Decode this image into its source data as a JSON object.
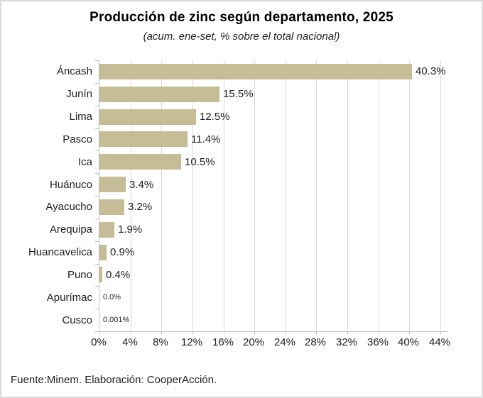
{
  "page": {
    "title": "Producción de zinc según departamento, 2025",
    "subtitle": "(acum. ene-set, % sobre el total nacional)",
    "footer": "Fuente:Minem. Elaboración: CooperAcción."
  },
  "chart_data": {
    "type": "bar",
    "orientation": "horizontal",
    "title": "Producción de zinc según departamento, 2025",
    "subtitle": "(acum. ene-set, % sobre el total nacional)",
    "categories": [
      "Áncash",
      "Junín",
      "Lima",
      "Pasco",
      "Ica",
      "Huánuco",
      "Ayacucho",
      "Arequipa",
      "Huancavelica",
      "Puno",
      "Apurímac",
      "Cusco"
    ],
    "values": [
      40.3,
      15.5,
      12.5,
      11.4,
      10.5,
      3.4,
      3.2,
      1.9,
      0.9,
      0.4,
      0.0,
      0.001
    ],
    "value_labels": [
      "40.3%",
      "15.5%",
      "12.5%",
      "11.4%",
      "10.5%",
      "3.4%",
      "3.2%",
      "1.9%",
      "0.9%",
      "0.4%",
      "0.0%",
      "0.001%"
    ],
    "small_value_label_indices": [
      10,
      11
    ],
    "x_tick_values": [
      0,
      4,
      8,
      12,
      16,
      20,
      24,
      28,
      32,
      36,
      40,
      44
    ],
    "x_tick_labels": [
      "0%",
      "4%",
      "8%",
      "12%",
      "16%",
      "20%",
      "24%",
      "28%",
      "32%",
      "36%",
      "40%",
      "44%"
    ],
    "xlim": [
      0,
      45
    ],
    "grid": true,
    "legend": false,
    "xlabel": "",
    "ylabel": "",
    "source_note": "Fuente:Minem. Elaboración: CooperAcción.",
    "colors": {
      "bar": "#C6BC95",
      "gridline": "#D9D9D9",
      "axis": "#BFBFBF",
      "text": "#1F1F1F",
      "title": "#000000"
    }
  }
}
